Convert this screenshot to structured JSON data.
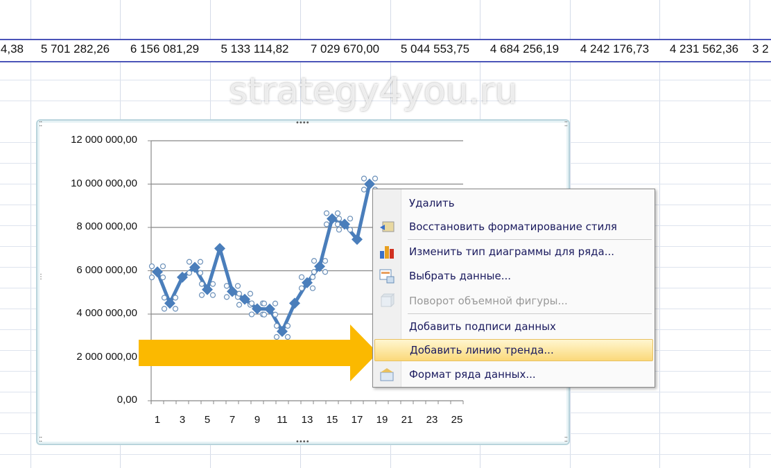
{
  "sheet_row": {
    "cells": [
      "4,38",
      "5 701 282,26",
      "6 156 081,29",
      "5 133 114,82",
      "7 029 670,00",
      "5 044 553,75",
      "4 684 256,19",
      "4 242 176,73",
      "4 231 562,36",
      "3 2"
    ]
  },
  "chart_data": {
    "type": "line",
    "x": [
      1,
      2,
      3,
      4,
      5,
      6,
      7,
      8,
      9,
      10,
      11,
      12,
      13,
      14,
      15,
      16,
      17,
      18
    ],
    "values": [
      5950000,
      4500000,
      5701282.26,
      6156081.29,
      5133114.82,
      7029670.0,
      5044553.75,
      4684256.19,
      4242176.73,
      4231562.36,
      3200000,
      4500000,
      5450000,
      6200000,
      8400000,
      8150000,
      7450000,
      10000000
    ],
    "ylim": [
      0,
      12000000
    ],
    "xlim": [
      1,
      25
    ],
    "y_ticks": [
      "0,00",
      "2 000 000,00",
      "4 000 000,00",
      "6 000 000,00",
      "8 000 000,00",
      "10 000 000,00",
      "12 000 000,00"
    ],
    "x_ticks": [
      "1",
      "3",
      "5",
      "7",
      "9",
      "11",
      "13",
      "15",
      "17",
      "19",
      "21",
      "23",
      "25"
    ],
    "grid": "horizontal",
    "series_color": "#4a7ebb",
    "marker": "diamond"
  },
  "context_menu": {
    "items": [
      {
        "label": "Удалить",
        "icon": "none",
        "disabled": false
      },
      {
        "label": "Восстановить форматирование стиля",
        "icon": "reset-style-icon",
        "disabled": false
      },
      {
        "label": "Изменить тип диаграммы для ряда...",
        "icon": "chart-type-icon",
        "disabled": false
      },
      {
        "label": "Выбрать данные...",
        "icon": "select-data-icon",
        "disabled": false
      },
      {
        "label": "Поворот объемной фигуры...",
        "icon": "3d-rotation-icon",
        "disabled": true
      },
      {
        "label": "Добавить подписи данных",
        "icon": "none",
        "disabled": false
      },
      {
        "label": "Добавить линию тренда...",
        "icon": "none",
        "disabled": false,
        "highlighted": true
      },
      {
        "label": "Формат ряда данных...",
        "icon": "format-series-icon",
        "disabled": false
      }
    ]
  },
  "watermark": "strategy4you.ru",
  "colors": {
    "arrow": "#fbb900",
    "highlight": "#fbd97a",
    "row_border": "#4a54b8"
  }
}
